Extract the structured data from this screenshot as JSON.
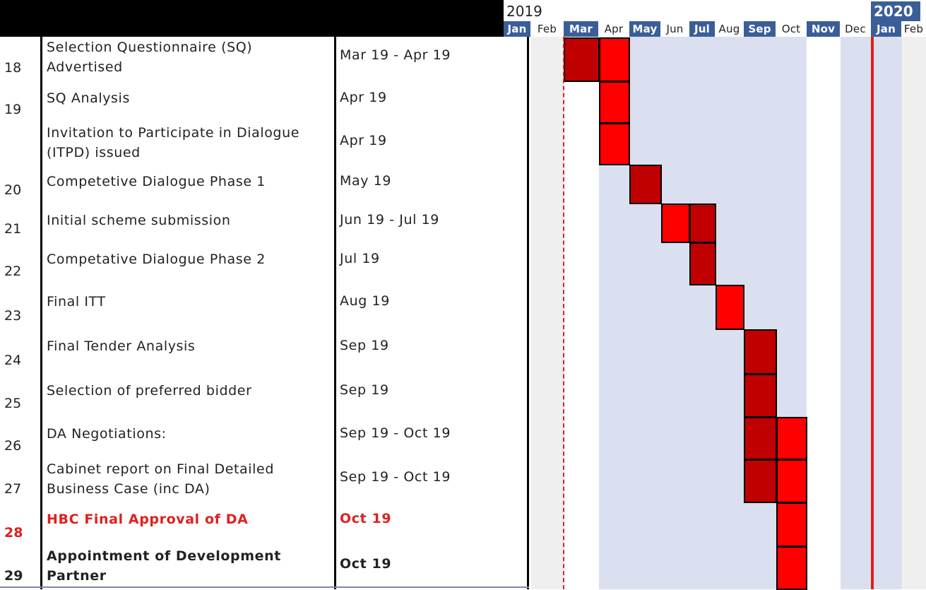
{
  "header": {
    "years": [
      {
        "label": "2019",
        "highlight": false
      },
      {
        "label": "2020",
        "highlight": true
      }
    ],
    "months": [
      {
        "label": "Jan",
        "highlight": true
      },
      {
        "label": "Feb",
        "highlight": false
      },
      {
        "label": "Mar",
        "highlight": true
      },
      {
        "label": "Apr",
        "highlight": false
      },
      {
        "label": "May",
        "highlight": true
      },
      {
        "label": "Jun",
        "highlight": false
      },
      {
        "label": "Jul",
        "highlight": true
      },
      {
        "label": "Aug",
        "highlight": false
      },
      {
        "label": "Sep",
        "highlight": true
      },
      {
        "label": "Oct",
        "highlight": false
      },
      {
        "label": "Nov",
        "highlight": true
      },
      {
        "label": "Dec",
        "highlight": false
      },
      {
        "label": "Jan",
        "highlight": true
      },
      {
        "label": "Feb",
        "highlight": false
      }
    ]
  },
  "chart_data": {
    "type": "gantt",
    "x_start": "Jan 2019",
    "x_end": "Feb 2020",
    "markers": [
      {
        "month": "Mar 2019",
        "style": "dashed",
        "color": "#e0201f"
      },
      {
        "month": "Jan 2020",
        "style": "solid",
        "color": "#e0201f"
      }
    ],
    "colors": {
      "dark": "#c00000",
      "bright": "#ff0000",
      "stripe": "#dae0f0",
      "grey_stripe": "#efefef"
    },
    "tasks": [
      {
        "num": "18",
        "name": "Selection Questionnaire (SQ) Advertised",
        "dates": "Mar 19 - Apr 19",
        "style": "normal",
        "cells": [
          {
            "month": "Mar 2019",
            "shade": "dark"
          },
          {
            "month": "Apr 2019",
            "shade": "bright"
          }
        ]
      },
      {
        "num": "19",
        "name": "SQ Analysis",
        "dates": "Apr 19",
        "style": "normal",
        "cells": [
          {
            "month": "Apr 2019",
            "shade": "bright"
          }
        ]
      },
      {
        "num": "",
        "name": "Invitation to Participate in Dialogue (ITPD)  issued",
        "dates": "Apr 19",
        "style": "normal",
        "cells": [
          {
            "month": "Apr 2019",
            "shade": "bright"
          }
        ]
      },
      {
        "num": "20",
        "name": "Competetive Dialogue Phase 1",
        "dates": "May 19",
        "style": "normal",
        "cells": [
          {
            "month": "May 2019",
            "shade": "dark"
          }
        ]
      },
      {
        "num": "21",
        "name": "Initial scheme submission",
        "dates": "Jun 19 - Jul 19",
        "style": "normal",
        "cells": [
          {
            "month": "Jun 2019",
            "shade": "bright"
          },
          {
            "month": "Jul 2019",
            "shade": "dark"
          }
        ]
      },
      {
        "num": "22",
        "name": "Competative Dialogue Phase 2",
        "dates": "Jul 19",
        "style": "normal",
        "cells": [
          {
            "month": "Jul 2019",
            "shade": "dark"
          }
        ]
      },
      {
        "num": "23",
        "name": "Final ITT",
        "dates": "Aug 19",
        "style": "normal",
        "cells": [
          {
            "month": "Aug 2019",
            "shade": "bright"
          }
        ]
      },
      {
        "num": "24",
        "name": "Final Tender Analysis",
        "dates": "Sep 19",
        "style": "normal",
        "cells": [
          {
            "month": "Sep 2019",
            "shade": "dark"
          }
        ]
      },
      {
        "num": "25",
        "name": "Selection of preferred bidder",
        "dates": "Sep 19",
        "style": "normal",
        "cells": [
          {
            "month": "Sep 2019",
            "shade": "dark"
          }
        ]
      },
      {
        "num": "26",
        "name": "DA Negotiations:",
        "dates": "Sep 19 - Oct 19",
        "style": "normal",
        "cells": [
          {
            "month": "Sep 2019",
            "shade": "dark"
          },
          {
            "month": "Oct 2019",
            "shade": "bright"
          }
        ]
      },
      {
        "num": "27",
        "name": "Cabinet report on Final Detailed Business Case (inc DA)",
        "dates": "Sep 19 - Oct 19",
        "style": "normal",
        "cells": [
          {
            "month": "Sep 2019",
            "shade": "dark"
          },
          {
            "month": "Oct 2019",
            "shade": "bright"
          }
        ]
      },
      {
        "num": "28",
        "name": "HBC Final Approval of DA",
        "dates": "Oct 19",
        "style": "red",
        "cells": [
          {
            "month": "Oct 2019",
            "shade": "bright"
          }
        ]
      },
      {
        "num": "29",
        "name": "Appointment of Development Partner",
        "dates": "Oct 19",
        "style": "bold",
        "cells": [
          {
            "month": "Oct 2019",
            "shade": "bright"
          }
        ]
      }
    ]
  }
}
